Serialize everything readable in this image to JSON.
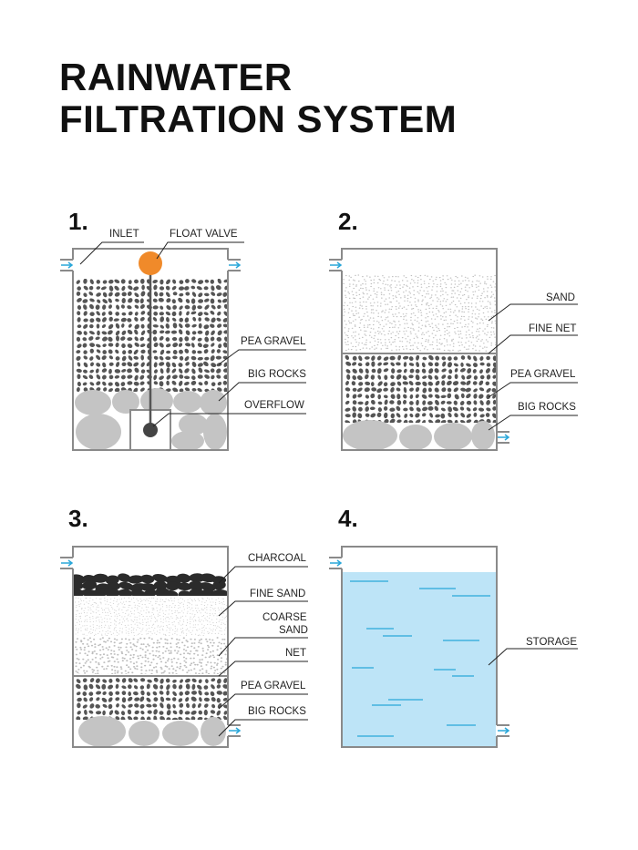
{
  "title": {
    "line1": "RAINWATER",
    "line2": "FILTRATION SYSTEM"
  },
  "colors": {
    "outline": "#8a8a8a",
    "gravel": "#555555",
    "rocks": "#c4c4c4",
    "sand": "#bdbdbd",
    "charcoal": "#2b2b2b",
    "float_valve": "#f08a2a",
    "water": "#bde4f7",
    "water_lines": "#2aa7d9",
    "inlet_arrow": "#2aa7d9"
  },
  "panels": [
    {
      "number": "1.",
      "labels": {
        "inlet": "INLET",
        "float_valve": "FLOAT VALVE",
        "pea_gravel": "PEA GRAVEL",
        "big_rocks": "BIG ROCKS",
        "overflow": "OVERFLOW"
      }
    },
    {
      "number": "2.",
      "labels": {
        "sand": "SAND",
        "fine_net": "FINE NET",
        "pea_gravel": "PEA GRAVEL",
        "big_rocks": "BIG ROCKS"
      }
    },
    {
      "number": "3.",
      "labels": {
        "charcoal": "CHARCOAL",
        "fine_sand": "FINE SAND",
        "coarse_sand_1": "COARSE",
        "coarse_sand_2": "SAND",
        "net": "NET",
        "pea_gravel": "PEA GRAVEL",
        "big_rocks": "BIG ROCKS"
      }
    },
    {
      "number": "4.",
      "labels": {
        "storage": "STORAGE"
      }
    }
  ]
}
